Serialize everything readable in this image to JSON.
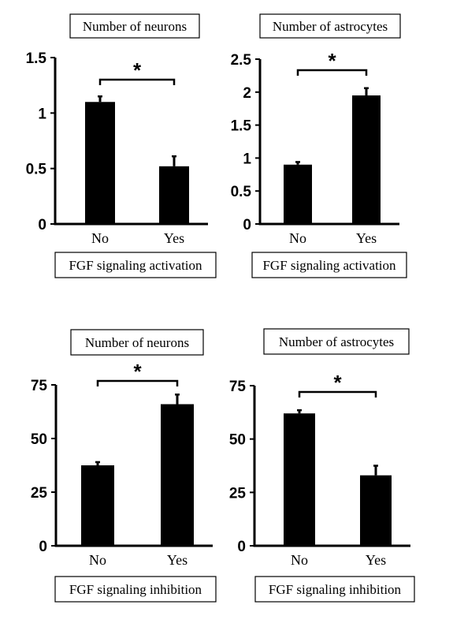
{
  "chart_data": [
    {
      "type": "bar",
      "title": "Number of neurons",
      "xlabel": "FGF signaling activation",
      "ylabel": "",
      "categories": [
        "No",
        "Yes"
      ],
      "values": [
        1.1,
        0.52
      ],
      "errors": [
        0.05,
        0.09
      ],
      "ylim": [
        0,
        1.5
      ],
      "yticks": [
        "0",
        "0.5",
        "1",
        "1.5"
      ],
      "significance": "*",
      "grid": false,
      "colors": {
        "bar": "#000000"
      }
    },
    {
      "type": "bar",
      "title": "Number of astrocytes",
      "xlabel": "FGF signaling activation",
      "ylabel": "",
      "categories": [
        "No",
        "Yes"
      ],
      "values": [
        0.9,
        1.95
      ],
      "errors": [
        0.04,
        0.11
      ],
      "ylim": [
        0,
        2.5
      ],
      "yticks": [
        "0",
        "0.5",
        "1",
        "1.5",
        "2",
        "2.5"
      ],
      "significance": "*",
      "grid": false,
      "colors": {
        "bar": "#000000"
      }
    },
    {
      "type": "bar",
      "title": "Number of neurons",
      "xlabel": "FGF signaling inhibition",
      "ylabel": "",
      "categories": [
        "No",
        "Yes"
      ],
      "values": [
        37.5,
        66
      ],
      "errors": [
        1.5,
        4.5
      ],
      "ylim": [
        0,
        75
      ],
      "yticks": [
        "0",
        "25",
        "50",
        "75"
      ],
      "significance": "*",
      "grid": false,
      "colors": {
        "bar": "#000000"
      }
    },
    {
      "type": "bar",
      "title": "Number of astrocytes",
      "xlabel": "FGF signaling inhibition",
      "ylabel": "",
      "categories": [
        "No",
        "Yes"
      ],
      "values": [
        62,
        33
      ],
      "errors": [
        1.5,
        4.5
      ],
      "ylim": [
        0,
        75
      ],
      "yticks": [
        "0",
        "25",
        "50",
        "75"
      ],
      "significance": "*",
      "grid": false,
      "colors": {
        "bar": "#000000"
      }
    }
  ]
}
